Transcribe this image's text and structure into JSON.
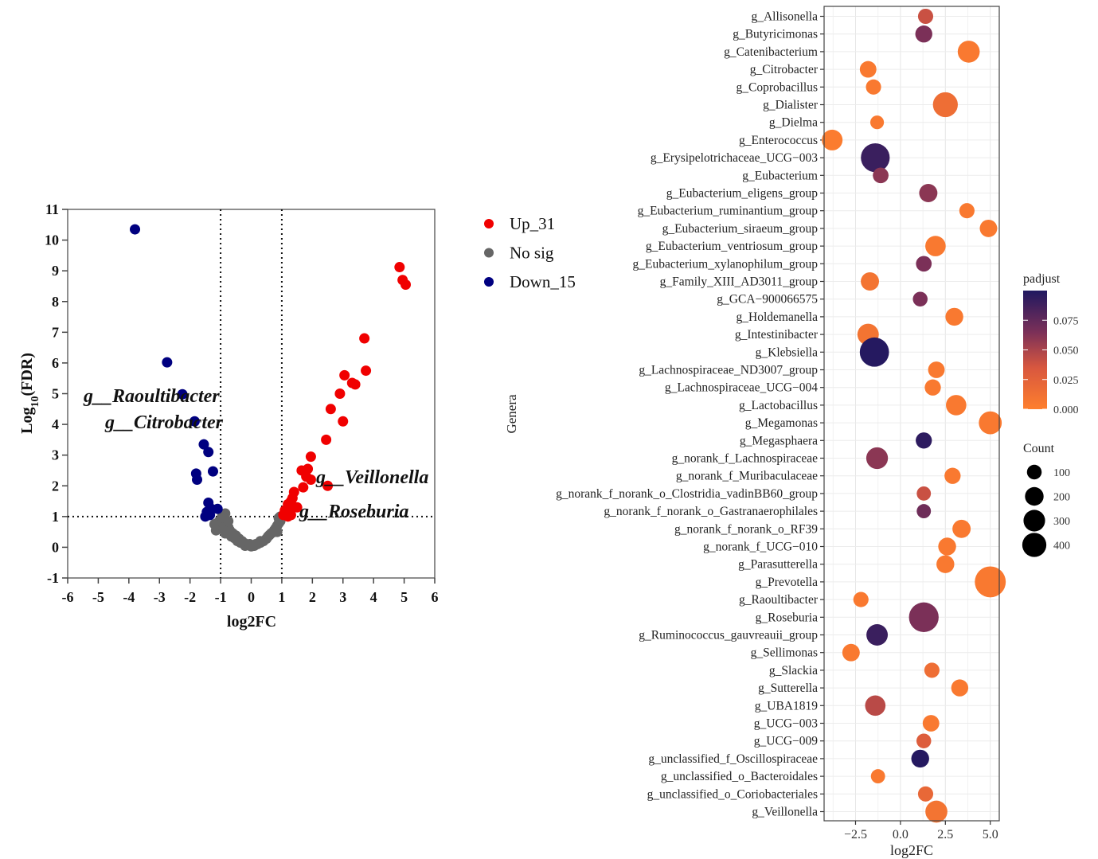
{
  "chart_data": [
    {
      "type": "scatter",
      "name": "volcano",
      "title": "",
      "xlabel": "log2FC",
      "ylabel_main": "Log",
      "ylabel_sub": "10",
      "ylabel_tail": "(FDR)",
      "xlim": [
        -6,
        6
      ],
      "ylim": [
        -1,
        11
      ],
      "xticks": [
        -6,
        -5,
        -4,
        -3,
        -2,
        -1,
        0,
        1,
        2,
        3,
        4,
        5,
        6
      ],
      "yticks": [
        -1,
        0,
        1,
        2,
        3,
        4,
        5,
        6,
        7,
        8,
        9,
        10,
        11
      ],
      "thresholds": {
        "x": [
          -1,
          1
        ],
        "y": 1
      },
      "legend": {
        "position": "right",
        "entries": [
          {
            "label": "Up_31",
            "color": "#f00000"
          },
          {
            "label": "No sig",
            "color": "#666666"
          },
          {
            "label": "Down_15",
            "color": "#000080"
          }
        ]
      },
      "annotations": [
        {
          "text": "g__Raoultibacter",
          "x": -2.2,
          "y": 5.0
        },
        {
          "text": "g__Citrobacter",
          "x": -1.8,
          "y": 4.1
        },
        {
          "text": "g__Veillonella",
          "x": 2.0,
          "y": 2.0
        },
        {
          "text": "g__Roseburia",
          "x": 1.3,
          "y": 1.2
        }
      ],
      "series": [
        {
          "name": "Up_31",
          "color": "#f00000",
          "points": [
            [
              4.85,
              9.12
            ],
            [
              4.95,
              8.7
            ],
            [
              5.05,
              8.55
            ],
            [
              3.7,
              6.8
            ],
            [
              3.75,
              5.75
            ],
            [
              3.05,
              5.6
            ],
            [
              3.3,
              5.35
            ],
            [
              3.4,
              5.3
            ],
            [
              2.9,
              5.0
            ],
            [
              2.6,
              4.5
            ],
            [
              3.0,
              4.1
            ],
            [
              2.45,
              3.5
            ],
            [
              1.95,
              2.95
            ],
            [
              1.65,
              2.5
            ],
            [
              1.85,
              2.55
            ],
            [
              1.8,
              2.3
            ],
            [
              1.95,
              2.2
            ],
            [
              2.5,
              2.0
            ],
            [
              1.7,
              1.95
            ],
            [
              1.4,
              1.8
            ],
            [
              1.35,
              1.6
            ],
            [
              1.3,
              1.5
            ],
            [
              1.5,
              1.3
            ],
            [
              1.2,
              1.4
            ],
            [
              1.25,
              1.25
            ],
            [
              1.1,
              1.2
            ],
            [
              1.15,
              1.1
            ],
            [
              1.05,
              1.05
            ],
            [
              1.3,
              1.05
            ],
            [
              1.2,
              1.0
            ],
            [
              1.1,
              1.15
            ]
          ]
        },
        {
          "name": "Down_15",
          "color": "#000080",
          "points": [
            [
              -3.8,
              10.35
            ],
            [
              -2.75,
              6.02
            ],
            [
              -2.25,
              4.98
            ],
            [
              -1.85,
              4.1
            ],
            [
              -1.55,
              3.35
            ],
            [
              -1.4,
              3.1
            ],
            [
              -1.25,
              2.47
            ],
            [
              -1.8,
              2.4
            ],
            [
              -1.77,
              2.2
            ],
            [
              -1.4,
              1.45
            ],
            [
              -1.3,
              1.25
            ],
            [
              -1.45,
              1.15
            ],
            [
              -1.1,
              1.25
            ],
            [
              -1.5,
              1.0
            ],
            [
              -1.35,
              1.05
            ]
          ]
        },
        {
          "name": "No sig",
          "color": "#666666",
          "points": [
            [
              -0.85,
              1.1
            ],
            [
              -0.9,
              0.95
            ],
            [
              -1.05,
              0.85
            ],
            [
              -0.95,
              0.8
            ],
            [
              -0.8,
              0.75
            ],
            [
              -1.2,
              0.75
            ],
            [
              -0.75,
              0.65
            ],
            [
              -0.7,
              0.55
            ],
            [
              -1.15,
              0.55
            ],
            [
              -0.9,
              0.55
            ],
            [
              -0.6,
              0.45
            ],
            [
              -0.85,
              0.45
            ],
            [
              -0.5,
              0.38
            ],
            [
              -0.65,
              0.35
            ],
            [
              -0.4,
              0.28
            ],
            [
              -0.55,
              0.3
            ],
            [
              -0.3,
              0.2
            ],
            [
              -0.45,
              0.2
            ],
            [
              -0.2,
              0.12
            ],
            [
              -0.35,
              0.15
            ],
            [
              -0.1,
              0.07
            ],
            [
              -0.2,
              0.05
            ],
            [
              0.0,
              0.03
            ],
            [
              0.1,
              0.05
            ],
            [
              0.2,
              0.1
            ],
            [
              0.3,
              0.15
            ],
            [
              0.4,
              0.2
            ],
            [
              0.5,
              0.28
            ],
            [
              0.55,
              0.35
            ],
            [
              0.6,
              0.4
            ],
            [
              0.7,
              0.48
            ],
            [
              0.75,
              0.55
            ],
            [
              0.8,
              0.62
            ],
            [
              0.85,
              0.7
            ],
            [
              0.9,
              0.78
            ],
            [
              0.95,
              0.85
            ],
            [
              0.9,
              0.95
            ],
            [
              0.95,
              1.0
            ],
            [
              0.65,
              0.45
            ],
            [
              0.3,
              0.2
            ],
            [
              0.15,
              0.1
            ],
            [
              -0.05,
              0.1
            ],
            [
              0.85,
              0.5
            ],
            [
              -0.75,
              0.85
            ],
            [
              -0.95,
              1.0
            ]
          ]
        }
      ]
    },
    {
      "type": "scatter",
      "name": "bubble",
      "title": "",
      "xlabel": "log2FC",
      "ylabel": "Genera",
      "xlim": [
        -4.25,
        5.5
      ],
      "xticks": [
        -2.5,
        0.0,
        2.5,
        5.0
      ],
      "xtick_labels": [
        "−2.5",
        "0.0",
        "2.5",
        "5.0"
      ],
      "grid": true,
      "color_legend": {
        "title": "padjust",
        "range": [
          0.0,
          0.1
        ],
        "ticks": [
          "0.000",
          "0.025",
          "0.050",
          "0.075"
        ],
        "low_color": "#fe7f2d",
        "high_color": "#201860"
      },
      "size_legend": {
        "title": "Count",
        "values": [
          100,
          200,
          300,
          400
        ]
      },
      "genera": [
        {
          "name": "g_Allisonella",
          "log2FC": 1.4,
          "padjust": 0.04,
          "count": 60
        },
        {
          "name": "g_Butyricimonas",
          "log2FC": 1.3,
          "padjust": 0.065,
          "count": 80
        },
        {
          "name": "g_Catenibacterium",
          "log2FC": 3.8,
          "padjust": 0.005,
          "count": 150
        },
        {
          "name": "g_Citrobacter",
          "log2FC": -1.8,
          "padjust": 0.005,
          "count": 75
        },
        {
          "name": "g_Coprobacillus",
          "log2FC": -1.5,
          "padjust": 0.005,
          "count": 60
        },
        {
          "name": "g_Dialister",
          "log2FC": 2.5,
          "padjust": 0.015,
          "count": 200
        },
        {
          "name": "g_Dielma",
          "log2FC": -1.3,
          "padjust": 0.005,
          "count": 45
        },
        {
          "name": "g_Enterococcus",
          "log2FC": -3.8,
          "padjust": 0.003,
          "count": 130
        },
        {
          "name": "g_Erysipelotrichaceae_UCG−003",
          "log2FC": -1.4,
          "padjust": 0.09,
          "count": 280
        },
        {
          "name": "g_Eubacterium",
          "log2FC": -1.1,
          "padjust": 0.06,
          "count": 65
        },
        {
          "name": "g_Eubacterium_eligens_group",
          "log2FC": 1.55,
          "padjust": 0.06,
          "count": 95
        },
        {
          "name": "g_Eubacterium_ruminantium_group",
          "log2FC": 3.7,
          "padjust": 0.005,
          "count": 60
        },
        {
          "name": "g_Eubacterium_siraeum_group",
          "log2FC": 4.9,
          "padjust": 0.005,
          "count": 85
        },
        {
          "name": "g_Eubacterium_ventriosum_group",
          "log2FC": 1.95,
          "padjust": 0.005,
          "count": 125
        },
        {
          "name": "g_Eubacterium_xylanophilum_group",
          "log2FC": 1.3,
          "padjust": 0.065,
          "count": 65
        },
        {
          "name": "g_Family_XIII_AD3011_group",
          "log2FC": -1.7,
          "padjust": 0.01,
          "count": 95
        },
        {
          "name": "g_GCA−900066575",
          "log2FC": 1.1,
          "padjust": 0.065,
          "count": 55
        },
        {
          "name": "g_Holdemanella",
          "log2FC": 3.0,
          "padjust": 0.005,
          "count": 90
        },
        {
          "name": "g_Intestinibacter",
          "log2FC": -1.8,
          "padjust": 0.01,
          "count": 140
        },
        {
          "name": "g_Klebsiella",
          "log2FC": -1.45,
          "padjust": 0.098,
          "count": 290
        },
        {
          "name": "g_Lachnospiraceae_ND3007_group",
          "log2FC": 2.0,
          "padjust": 0.005,
          "count": 75
        },
        {
          "name": "g_Lachnospiraceae_UCG−004",
          "log2FC": 1.8,
          "padjust": 0.005,
          "count": 70
        },
        {
          "name": "g_Lactobacillus",
          "log2FC": 3.1,
          "padjust": 0.005,
          "count": 125
        },
        {
          "name": "g_Megamonas",
          "log2FC": 5.0,
          "padjust": 0.005,
          "count": 165
        },
        {
          "name": "g_Megasphaera",
          "log2FC": 1.3,
          "padjust": 0.095,
          "count": 70
        },
        {
          "name": "g_norank_f_Lachnospiraceae",
          "log2FC": -1.3,
          "padjust": 0.06,
          "count": 145
        },
        {
          "name": "g_norank_f_Muribaculaceae",
          "log2FC": 2.9,
          "padjust": 0.005,
          "count": 70
        },
        {
          "name": "g_norank_f_norank_o_Clostridia_vadinBB60_group",
          "log2FC": 1.3,
          "padjust": 0.04,
          "count": 50
        },
        {
          "name": "g_norank_f_norank_o_Gastranaerophilales",
          "log2FC": 1.3,
          "padjust": 0.07,
          "count": 50
        },
        {
          "name": "g_norank_f_norank_o_RF39",
          "log2FC": 3.4,
          "padjust": 0.005,
          "count": 95
        },
        {
          "name": "g_norank_f_UCG−010",
          "log2FC": 2.6,
          "padjust": 0.005,
          "count": 90
        },
        {
          "name": "g_Parasutterella",
          "log2FC": 2.5,
          "padjust": 0.005,
          "count": 90
        },
        {
          "name": "g_Prevotella",
          "log2FC": 5.0,
          "padjust": 0.005,
          "count": 330
        },
        {
          "name": "g_Raoultibacter",
          "log2FC": -2.2,
          "padjust": 0.005,
          "count": 60
        },
        {
          "name": "g_Roseburia",
          "log2FC": 1.3,
          "padjust": 0.065,
          "count": 300
        },
        {
          "name": "g_Ruminococcus_gauvreauii_group",
          "log2FC": -1.3,
          "padjust": 0.09,
          "count": 140
        },
        {
          "name": "g_Sellimonas",
          "log2FC": -2.75,
          "padjust": 0.005,
          "count": 85
        },
        {
          "name": "g_Slackia",
          "log2FC": 1.75,
          "padjust": 0.015,
          "count": 60
        },
        {
          "name": "g_Sutterella",
          "log2FC": 3.3,
          "padjust": 0.005,
          "count": 80
        },
        {
          "name": "g_UBA1819",
          "log2FC": -1.4,
          "padjust": 0.045,
          "count": 125
        },
        {
          "name": "g_UCG−003",
          "log2FC": 1.7,
          "padjust": 0.005,
          "count": 75
        },
        {
          "name": "g_UCG−009",
          "log2FC": 1.3,
          "padjust": 0.03,
          "count": 55
        },
        {
          "name": "g_unclassified_f_Oscillospiraceae",
          "log2FC": 1.1,
          "padjust": 0.098,
          "count": 90
        },
        {
          "name": "g_unclassified_o_Bacteroidales",
          "log2FC": -1.25,
          "padjust": 0.005,
          "count": 50
        },
        {
          "name": "g_unclassified_o_Coriobacteriales",
          "log2FC": 1.4,
          "padjust": 0.02,
          "count": 60
        },
        {
          "name": "g_Veillonella",
          "log2FC": 2.0,
          "padjust": 0.01,
          "count": 150
        }
      ]
    }
  ]
}
